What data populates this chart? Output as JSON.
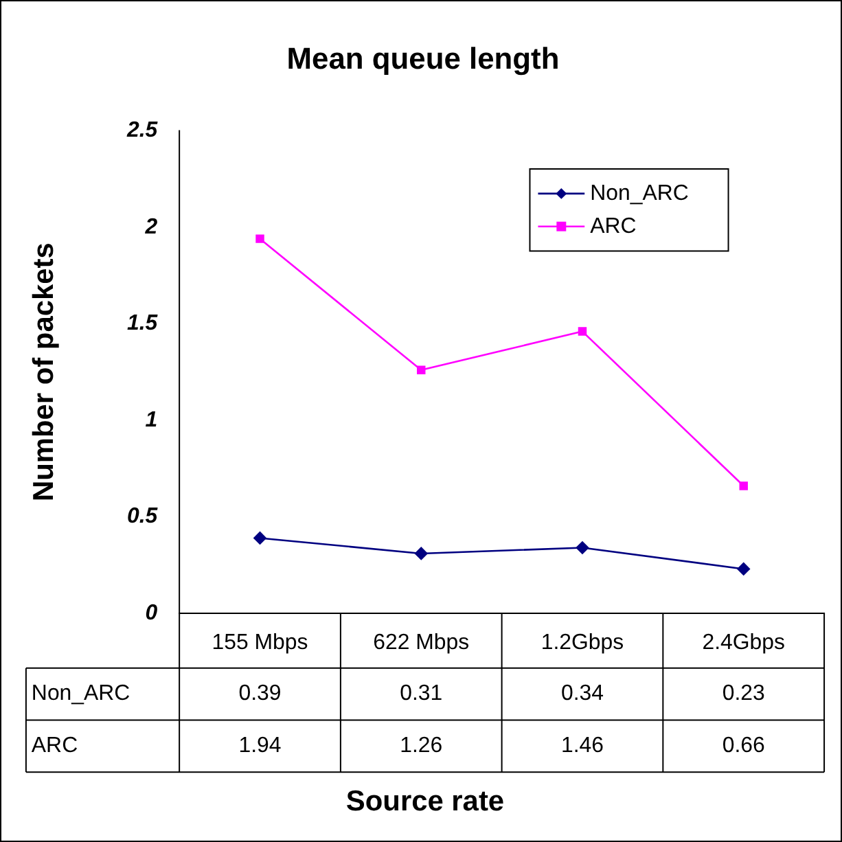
{
  "chart_data": {
    "type": "line",
    "title": "Mean queue length",
    "xlabel": "Source rate",
    "ylabel": "Number of packets",
    "categories": [
      "155 Mbps",
      "622 Mbps",
      "1.2Gbps",
      "2.4Gbps"
    ],
    "series": [
      {
        "name": "Non_ARC",
        "color": "#000080",
        "marker": "diamond",
        "values": [
          0.39,
          0.31,
          0.34,
          0.23
        ]
      },
      {
        "name": "ARC",
        "color": "#ff00ff",
        "marker": "square",
        "values": [
          1.94,
          1.26,
          1.46,
          0.66
        ]
      }
    ],
    "ylim": [
      0,
      2.5
    ],
    "yticks": [
      0,
      0.5,
      1,
      1.5,
      2,
      2.5
    ],
    "grid": false,
    "legend": "top right",
    "data_labels": true,
    "line_style": "solid"
  }
}
